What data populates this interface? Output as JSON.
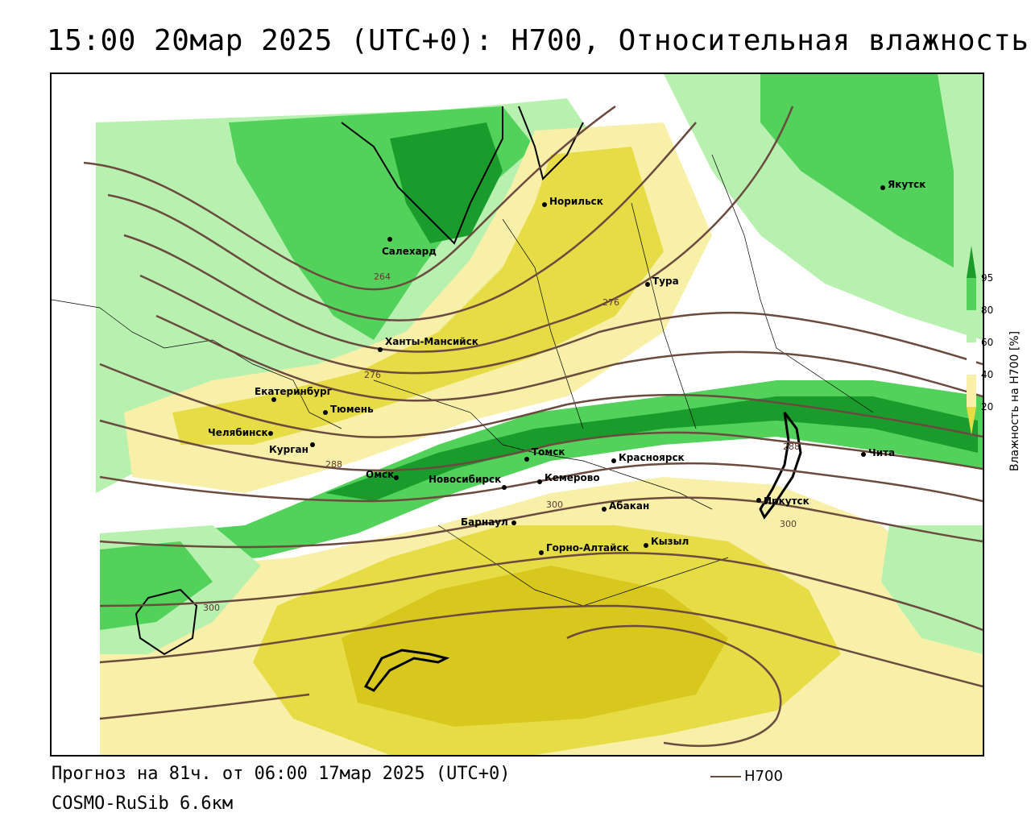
{
  "header": {
    "title": "15:00 20мар 2025 (UTC+0): H700, Относительная влажность"
  },
  "footer": {
    "forecast": "Прогноз на 81ч. от 06:00 17мар 2025 (UTC+0)",
    "model": "COSMO-RuSib 6.6км",
    "line_legend_label": "H700"
  },
  "legend": {
    "title": "Влажность на H700 [%]",
    "ticks": [
      "95",
      "80",
      "60",
      "40",
      "20"
    ],
    "colors": {
      "very_dry": "#d8c81e",
      "dry": "#e6dc46",
      "mid_dry": "#f8f0a8",
      "neutral": "#ffffff",
      "moist": "#b8f0b0",
      "wet": "#52d25a",
      "saturated": "#1a9c2c"
    }
  },
  "map": {
    "contour_color": "#6b4a3f",
    "cities": [
      {
        "name": "Салехард"
      },
      {
        "name": "Норильск"
      },
      {
        "name": "Якутск"
      },
      {
        "name": "Тура"
      },
      {
        "name": "Ханты-Мансийск"
      },
      {
        "name": "Екатеринбург"
      },
      {
        "name": "Тюмень"
      },
      {
        "name": "Челябинск"
      },
      {
        "name": "Курган"
      },
      {
        "name": "Омск"
      },
      {
        "name": "Новосибирск"
      },
      {
        "name": "Томск"
      },
      {
        "name": "Красноярск"
      },
      {
        "name": "Кемерово"
      },
      {
        "name": "Абакан"
      },
      {
        "name": "Барнаул"
      },
      {
        "name": "Горно-Алтайск"
      },
      {
        "name": "Кызыл"
      },
      {
        "name": "Иркутск"
      },
      {
        "name": "Чита"
      }
    ],
    "contour_labels": [
      "264",
      "276",
      "276",
      "288",
      "288",
      "300",
      "300",
      "300"
    ]
  }
}
